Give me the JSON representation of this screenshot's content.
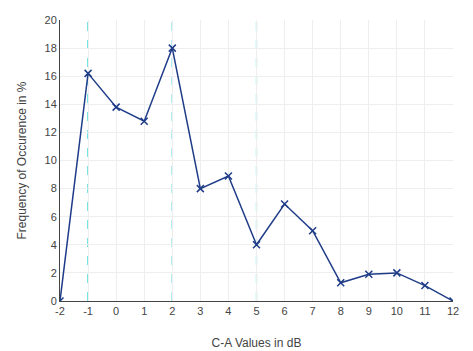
{
  "chart_data": {
    "type": "line",
    "x": [
      -2,
      -1,
      0,
      1,
      2,
      3,
      4,
      5,
      6,
      7,
      8,
      9,
      10,
      11,
      12
    ],
    "values": [
      0.0,
      16.2,
      13.8,
      12.8,
      18.0,
      8.0,
      8.9,
      4.0,
      6.9,
      5.0,
      1.3,
      1.9,
      2.0,
      1.1,
      0.0
    ],
    "color": "#1F3C88",
    "marker": "x",
    "vlines": {
      "x": [
        -1,
        2,
        5
      ],
      "color": "#00CCCC",
      "line_style": "dashed"
    },
    "xlabel": "C-A Values in dB",
    "ylabel": "Frequency of Occurence in %",
    "xlim": [
      -2,
      12
    ],
    "ylim": [
      0,
      20
    ],
    "xticks": [
      -2,
      -1,
      0,
      1,
      2,
      3,
      4,
      5,
      6,
      7,
      8,
      9,
      10,
      11,
      12
    ],
    "yticks": [
      0,
      2,
      4,
      6,
      8,
      10,
      12,
      14,
      16,
      18,
      20
    ],
    "grid": true
  }
}
